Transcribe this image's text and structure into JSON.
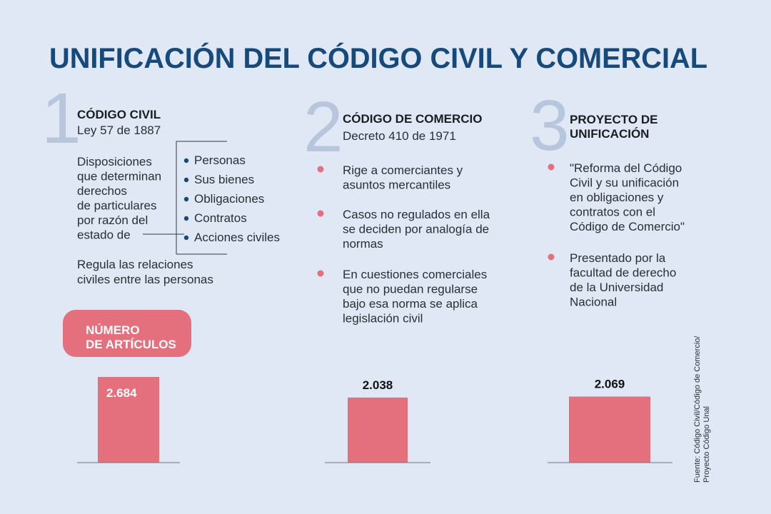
{
  "header": {
    "title": "UNIFICACIÓN DEL CÓDIGO CIVIL Y COMERCIAL"
  },
  "sections": [
    {
      "number": "1",
      "title": [
        "CÓDIGO CIVIL"
      ],
      "subtitle": "Ley 57 de 1887",
      "description": [
        "Disposiciones",
        "que determinan",
        "derechos",
        "de particulares",
        "por razón del",
        "estado de"
      ],
      "items": [
        "Personas",
        "Sus bienes",
        "Obligaciones",
        "Contratos",
        "Acciones civiles"
      ],
      "summary": [
        "Regula las relaciones",
        "civiles entre las personas"
      ]
    },
    {
      "number": "2",
      "title": [
        "CÓDIGO DE COMERCIO"
      ],
      "subtitle": "Decreto 410 de 1971",
      "bullets": [
        [
          "Rige a comerciantes y",
          "asuntos mercantiles"
        ],
        [
          "Casos no regulados en ella",
          "se deciden por analogía de",
          "normas"
        ],
        [
          "En cuestiones comerciales",
          "que no puedan regularse",
          "bajo esa norma se aplica",
          "legislación civil"
        ]
      ]
    },
    {
      "number": "3",
      "title": [
        "PROYECTO DE",
        "UNIFICACIÓN"
      ],
      "bullets": [
        [
          "\"Reforma del Código",
          "Civil y su unificación",
          "en obligaciones y",
          "contratos con el",
          "Código de Comercio\""
        ],
        [
          "Presentado por la",
          "facultad de derecho",
          "de la Universidad",
          "Nacional"
        ]
      ]
    }
  ],
  "chart_data": {
    "type": "bar",
    "title": [
      "NÚMERO",
      "DE ARTÍCULOS"
    ],
    "values": [
      2684,
      2038,
      2069
    ],
    "value_labels": [
      "2.684",
      "2.038",
      "2.069"
    ],
    "color": "#e4707e"
  },
  "source": [
    "Fuente: Código Civil/Código de Comercio/",
    "Proyecto Código Unal"
  ]
}
